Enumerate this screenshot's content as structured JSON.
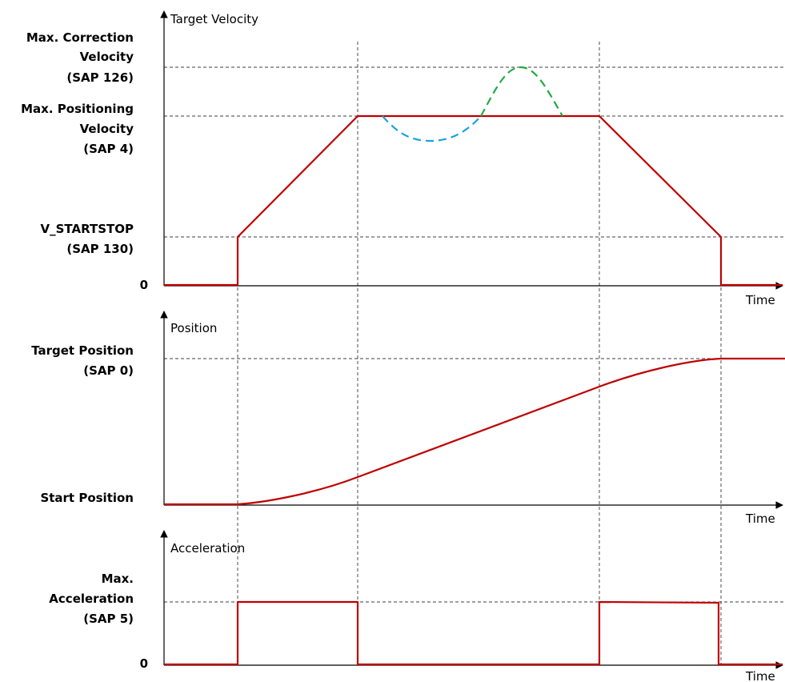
{
  "velocity_panel": {
    "axis_title": "Target Velocity",
    "x_axis_title": "Time",
    "labels": {
      "max_correction": [
        "Max. Correction",
        "Velocity",
        "(SAP 126)"
      ],
      "max_positioning": [
        "Max. Positioning",
        "Velocity",
        "(SAP 4)"
      ],
      "v_startstop": [
        "V_STARTSTOP",
        "(SAP 130)"
      ],
      "zero": "0"
    }
  },
  "position_panel": {
    "axis_title": "Position",
    "x_axis_title": "Time",
    "labels": {
      "target_position": [
        "Target Position",
        "(SAP 0)"
      ],
      "start_position": "Start Position"
    }
  },
  "acceleration_panel": {
    "axis_title": "Acceleration",
    "x_axis_title": "Time",
    "labels": {
      "max_acceleration": [
        "Max.",
        "Acceleration",
        "(SAP 5)"
      ],
      "zero": "0"
    }
  },
  "colors": {
    "profile": "#c00000",
    "correction_down": "#1aa3e0",
    "correction_up": "#22aa44",
    "guides": "#000000"
  }
}
